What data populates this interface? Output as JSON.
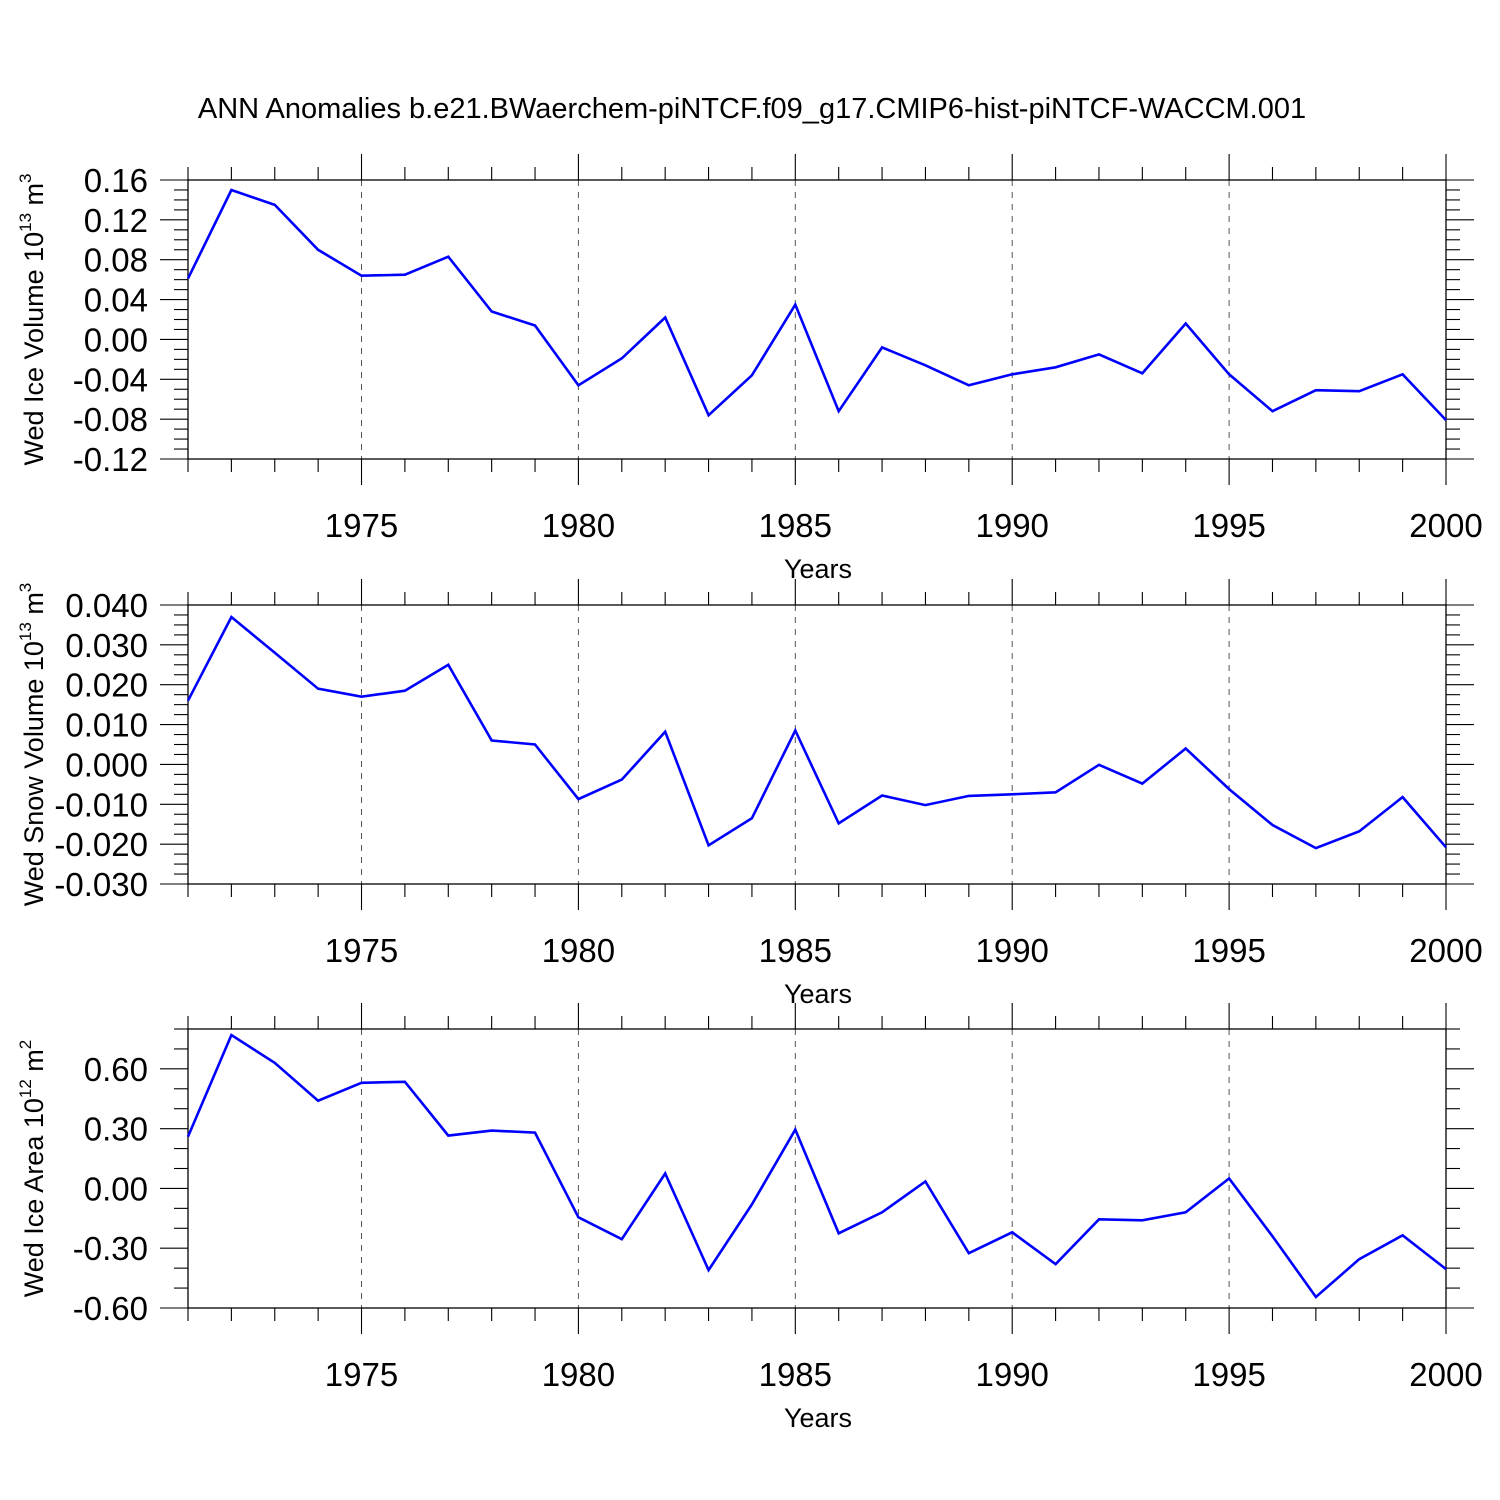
{
  "title": "ANN Anomalies b.e21.BWaerchem-piNTCF.f09_g17.CMIP6-hist-piNTCF-WACCM.001",
  "colors": {
    "line": "#0000ff",
    "grid": "#555555",
    "axis": "#000000"
  },
  "chart_data": [
    {
      "type": "line",
      "xlabel": "Years",
      "ylabel_text": "Wed Ice Volume 10",
      "ylabel_exp": "13",
      "ylabel_unit": "m",
      "ylabel_unit_exp": "3",
      "xlim": [
        1971,
        2000
      ],
      "ylim": [
        -0.12,
        0.16
      ],
      "yticks": [
        -0.12,
        -0.08,
        -0.04,
        0.0,
        0.04,
        0.08,
        0.12,
        0.16
      ],
      "ytick_labels": [
        "-0.12",
        "-0.08",
        "-0.04",
        "0.00",
        "0.04",
        "0.08",
        "0.12",
        "0.16"
      ],
      "yminor_step": 0.01,
      "xticks": [
        1975,
        1980,
        1985,
        1990,
        1995,
        2000
      ],
      "xtick_labels": [
        "1975",
        "1980",
        "1985",
        "1990",
        "1995",
        "2000"
      ],
      "grid": "x-dashed",
      "x": [
        1971,
        1972,
        1973,
        1974,
        1975,
        1976,
        1977,
        1978,
        1979,
        1980,
        1981,
        1982,
        1983,
        1984,
        1985,
        1986,
        1987,
        1988,
        1989,
        1990,
        1991,
        1992,
        1993,
        1994,
        1995,
        1996,
        1997,
        1998,
        1999,
        2000
      ],
      "values": [
        0.061,
        0.15,
        0.135,
        0.09,
        0.064,
        0.065,
        0.083,
        0.028,
        0.014,
        -0.046,
        -0.019,
        0.022,
        -0.076,
        -0.036,
        0.035,
        -0.072,
        -0.008,
        -0.026,
        -0.046,
        -0.035,
        -0.028,
        -0.015,
        -0.034,
        0.016,
        -0.035,
        -0.072,
        -0.051,
        -0.052,
        -0.035,
        -0.081
      ]
    },
    {
      "type": "line",
      "xlabel": "Years",
      "ylabel_text": "Wed Snow Volume 10",
      "ylabel_exp": "13",
      "ylabel_unit": "m",
      "ylabel_unit_exp": "3",
      "xlim": [
        1971,
        2000
      ],
      "ylim": [
        -0.03,
        0.04
      ],
      "yticks": [
        -0.03,
        -0.02,
        -0.01,
        0.0,
        0.01,
        0.02,
        0.03,
        0.04
      ],
      "ytick_labels": [
        "-0.030",
        "-0.020",
        "-0.010",
        "0.000",
        "0.010",
        "0.020",
        "0.030",
        "0.040"
      ],
      "yminor_step": 0.0025,
      "xticks": [
        1975,
        1980,
        1985,
        1990,
        1995,
        2000
      ],
      "xtick_labels": [
        "1975",
        "1980",
        "1985",
        "1990",
        "1995",
        "2000"
      ],
      "grid": "x-dashed",
      "x": [
        1971,
        1972,
        1973,
        1974,
        1975,
        1976,
        1977,
        1978,
        1979,
        1980,
        1981,
        1982,
        1983,
        1984,
        1985,
        1986,
        1987,
        1988,
        1989,
        1990,
        1991,
        1992,
        1993,
        1994,
        1995,
        1996,
        1997,
        1998,
        1999,
        2000
      ],
      "values": [
        0.016,
        0.037,
        0.028,
        0.019,
        0.017,
        0.0185,
        0.025,
        0.006,
        0.005,
        -0.0087,
        -0.0038,
        0.0082,
        -0.0203,
        -0.0135,
        0.0085,
        -0.0148,
        -0.0078,
        -0.0102,
        -0.0079,
        -0.0075,
        -0.007,
        -0.0001,
        -0.0048,
        0.004,
        -0.0062,
        -0.0152,
        -0.021,
        -0.0168,
        -0.0082,
        -0.0208
      ]
    },
    {
      "type": "line",
      "xlabel": "Years",
      "ylabel_text": "Wed Ice Area 10",
      "ylabel_exp": "12",
      "ylabel_unit": "m",
      "ylabel_unit_exp": "2",
      "xlim": [
        1971,
        2000
      ],
      "ylim": [
        -0.6,
        0.8
      ],
      "yticks": [
        -0.6,
        -0.3,
        0.0,
        0.3,
        0.6
      ],
      "ytick_labels": [
        "-0.60",
        "-0.30",
        "0.00",
        "0.30",
        "0.60"
      ],
      "yminor_step": 0.1,
      "xticks": [
        1975,
        1980,
        1985,
        1990,
        1995,
        2000
      ],
      "xtick_labels": [
        "1975",
        "1980",
        "1985",
        "1990",
        "1995",
        "2000"
      ],
      "grid": "x-dashed",
      "x": [
        1971,
        1972,
        1973,
        1974,
        1975,
        1976,
        1977,
        1978,
        1979,
        1980,
        1981,
        1982,
        1983,
        1984,
        1985,
        1986,
        1987,
        1988,
        1989,
        1990,
        1991,
        1992,
        1993,
        1994,
        1995,
        1996,
        1997,
        1998,
        1999,
        2000
      ],
      "values": [
        0.26,
        0.77,
        0.63,
        0.44,
        0.53,
        0.535,
        0.265,
        0.29,
        0.28,
        -0.145,
        -0.255,
        0.075,
        -0.41,
        -0.08,
        0.295,
        -0.225,
        -0.12,
        0.035,
        -0.325,
        -0.22,
        -0.38,
        -0.155,
        -0.16,
        -0.12,
        0.05,
        -0.24,
        -0.545,
        -0.355,
        -0.235,
        -0.405
      ]
    }
  ]
}
